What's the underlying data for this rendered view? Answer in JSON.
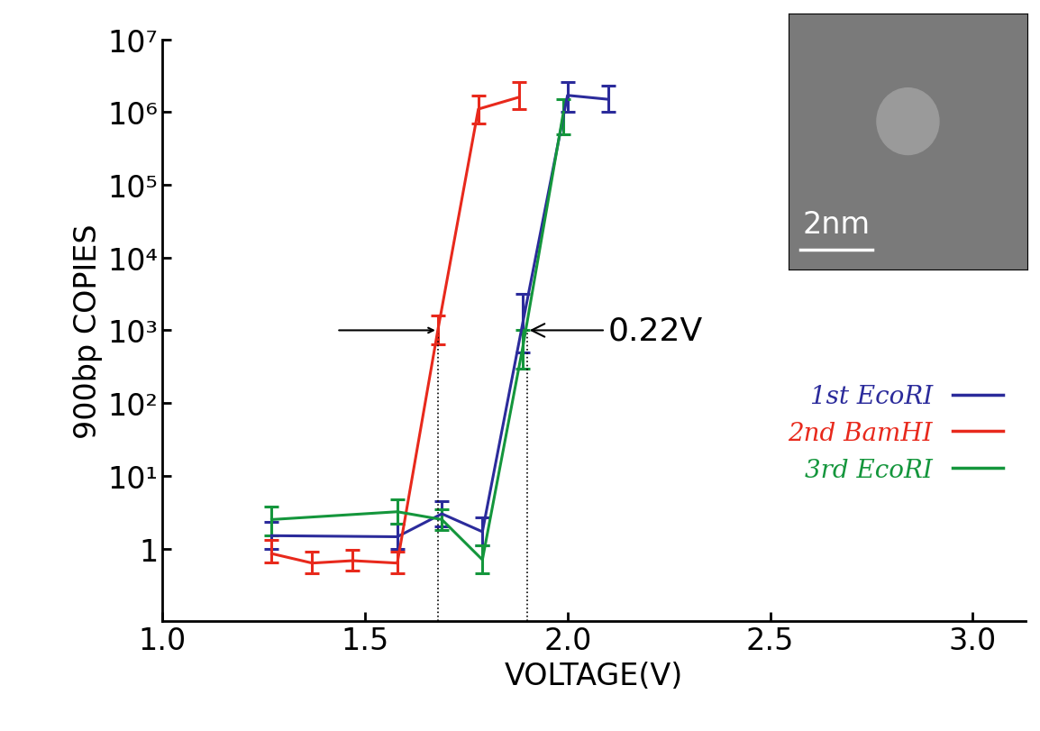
{
  "chart_data": {
    "type": "line",
    "x_label": "VOLTAGE(V)",
    "y_label": "900bp COPIES",
    "log": "y",
    "xlim": [
      1.0,
      3.13
    ],
    "xticks": [
      1.0,
      1.5,
      2.0,
      2.5,
      3.0
    ],
    "ylim": [
      0.1,
      10000000
    ],
    "yticks": [
      1,
      {
        "value": 10,
        "label": "10¹"
      },
      {
        "value": 100,
        "label": "10²"
      },
      {
        "value": 1000,
        "label": "10³"
      },
      {
        "value": 10000,
        "label": "10⁴"
      },
      {
        "value": 100000,
        "label": "10⁵"
      },
      {
        "value": 1000000,
        "label": "10⁶"
      },
      {
        "value": 10000000,
        "label": "10⁷"
      }
    ],
    "legend": "lower right",
    "series": [
      {
        "name": "1st EcoRI",
        "color": "#2b2b9b",
        "x": [
          1.27,
          1.58,
          1.69,
          1.79,
          1.89,
          2.0,
          2.1
        ],
        "values": [
          1.5,
          1.45,
          3.0,
          1.7,
          1300,
          1700000,
          1500000
        ],
        "error_low": [
          1.0,
          1.0,
          2.0,
          1.1,
          500,
          1000000,
          1000000
        ],
        "error_high": [
          2.3,
          2.2,
          4.5,
          2.7,
          3200,
          2600000,
          2300000
        ]
      },
      {
        "name": "2nd BamHI",
        "color": "#e8291c",
        "x": [
          1.27,
          1.37,
          1.47,
          1.58,
          1.68,
          1.78,
          1.88
        ],
        "values": [
          0.85,
          0.63,
          0.68,
          0.63,
          1000,
          1100000,
          1600000
        ],
        "error_low": [
          0.65,
          0.45,
          0.5,
          0.45,
          650,
          700000,
          1100000
        ],
        "error_high": [
          1.3,
          0.9,
          0.95,
          0.9,
          1600,
          1700000,
          2600000
        ]
      },
      {
        "name": "3rd EcoRI",
        "color": "#14963c",
        "x": [
          1.27,
          1.58,
          1.69,
          1.79,
          1.89,
          1.99
        ],
        "values": [
          2.5,
          3.2,
          2.5,
          0.7,
          600,
          1000000
        ],
        "error_low": [
          1.5,
          2.2,
          1.8,
          0.45,
          300,
          500000
        ],
        "error_high": [
          3.8,
          4.8,
          3.5,
          1.1,
          1000,
          1500000
        ]
      }
    ],
    "annotation": {
      "text": "0.22V",
      "x_from": 1.68,
      "x_to": 1.9,
      "y": 1000
    },
    "inset": {
      "scale_label": "2nm"
    }
  }
}
